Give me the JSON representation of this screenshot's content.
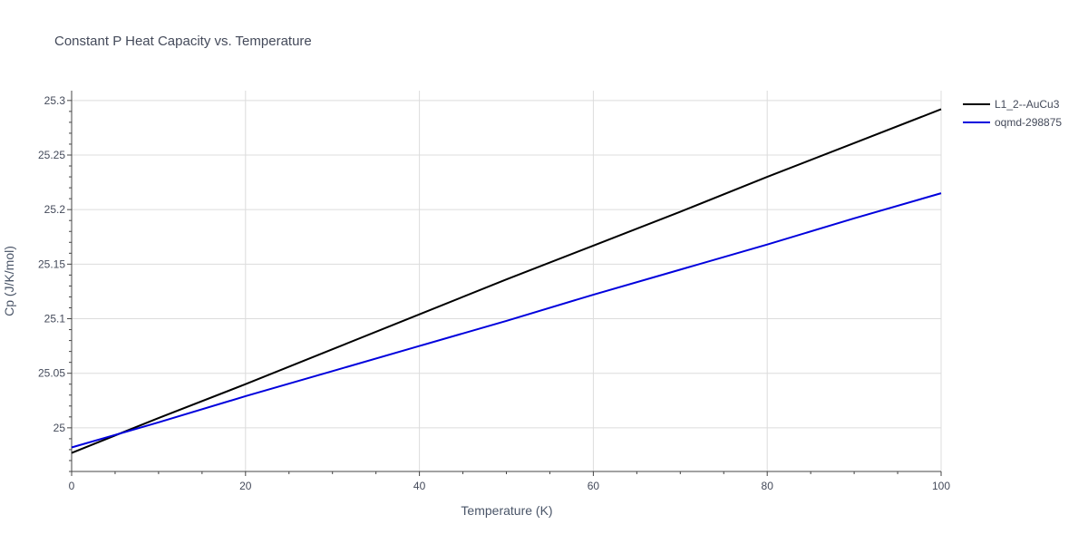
{
  "chart_data": {
    "type": "line",
    "title": "Constant P Heat Capacity vs. Temperature",
    "xlabel": "Temperature (K)",
    "ylabel": "Cp (J/K/mol)",
    "xlim": [
      0,
      100
    ],
    "ylim": [
      24.96,
      25.309
    ],
    "xticks": [
      0,
      20,
      40,
      60,
      80,
      100
    ],
    "yticks": [
      25,
      25.05,
      25.1,
      25.15,
      25.2,
      25.25,
      25.3
    ],
    "ytick_labels": [
      "25",
      "25.05",
      "25.1",
      "25.15",
      "25.2",
      "25.25",
      "25.3"
    ],
    "grid": true,
    "legend_position": "top-right",
    "series": [
      {
        "name": "L1_2--AuCu3",
        "color": "#000000",
        "x": [
          0,
          10,
          20,
          30,
          40,
          50,
          60,
          70,
          80,
          90,
          100
        ],
        "y": [
          24.977,
          25.009,
          25.04,
          25.072,
          25.104,
          25.136,
          25.167,
          25.198,
          25.23,
          25.261,
          25.292
        ]
      },
      {
        "name": "oqmd-298875",
        "color": "#0000dd",
        "x": [
          0,
          10,
          20,
          30,
          40,
          50,
          60,
          70,
          80,
          90,
          100
        ],
        "y": [
          24.982,
          25.005,
          25.029,
          25.052,
          25.075,
          25.098,
          25.122,
          25.145,
          25.168,
          25.192,
          25.215
        ]
      }
    ]
  }
}
